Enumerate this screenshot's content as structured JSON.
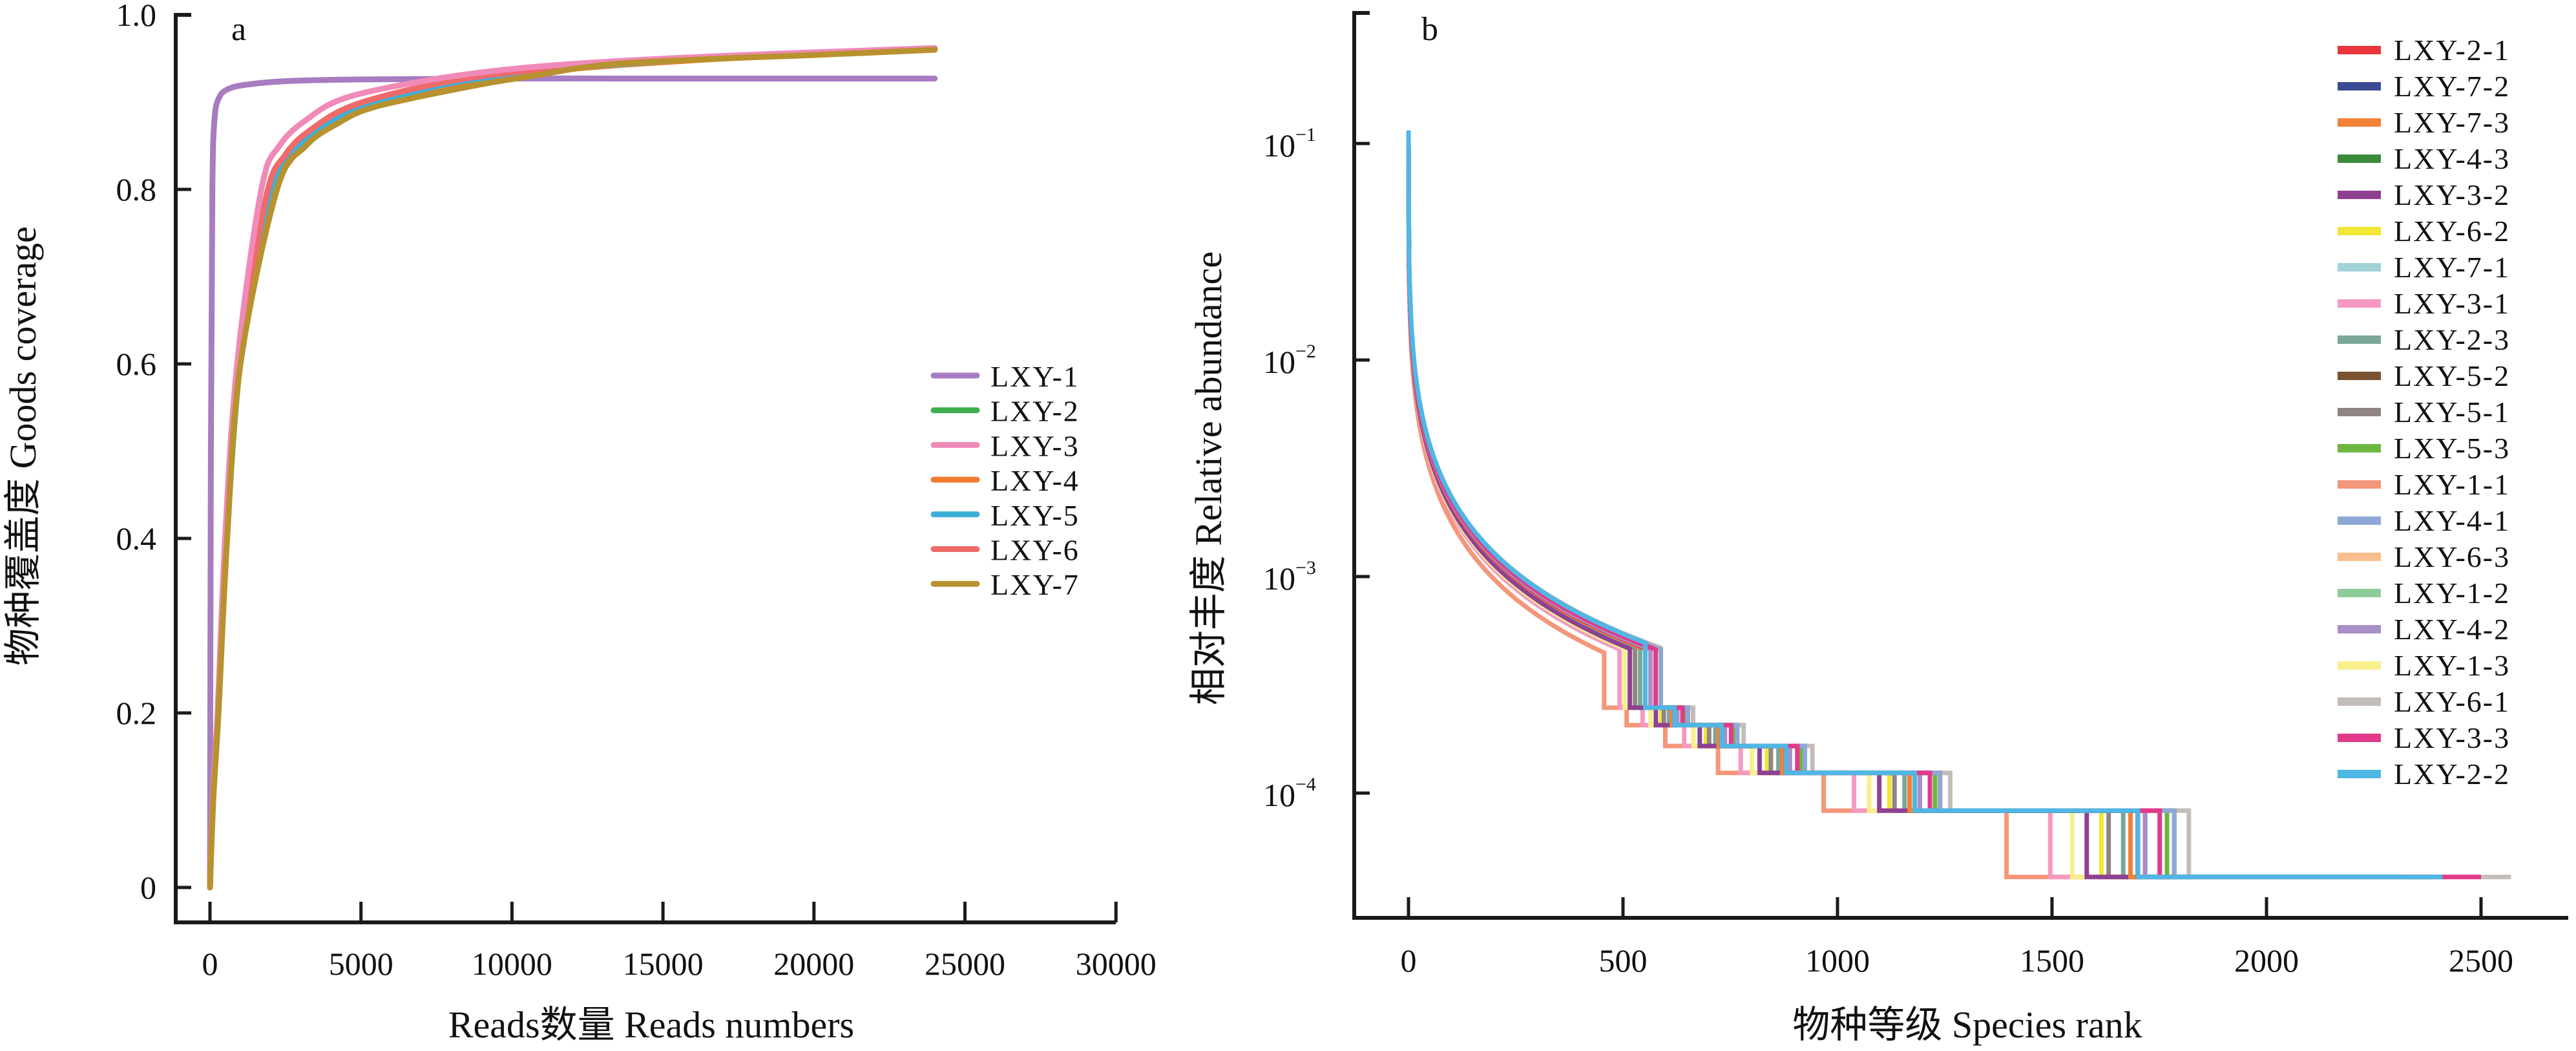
{
  "chart_data": [
    {
      "panel_label": "a",
      "type": "line",
      "title": "",
      "xlabel": "Reads数量 Reads numbers",
      "ylabel": "物种覆盖度 Goods coverage",
      "xlim": [
        0,
        30000
      ],
      "ylim": [
        0,
        1.0
      ],
      "xticks": [
        0,
        5000,
        10000,
        15000,
        20000,
        25000,
        30000
      ],
      "xtick_labels": [
        "0",
        "5000",
        "10000",
        "15000",
        "20000",
        "25000",
        "30000"
      ],
      "yticks": [
        0,
        0.2,
        0.4,
        0.6,
        0.8,
        1.0
      ],
      "ytick_labels": [
        "0",
        "0.2",
        "0.4",
        "0.6",
        "0.8",
        "1.0"
      ],
      "grid": false,
      "legend_position": "center-right",
      "series": [
        {
          "name": "LXY-1",
          "color": "#a77cc0",
          "x": [
            0,
            30,
            80,
            150,
            300,
            600,
            1200,
            2500,
            5000,
            10000,
            15000,
            20000,
            24000
          ],
          "y": [
            0,
            0.5,
            0.8,
            0.88,
            0.905,
            0.915,
            0.92,
            0.924,
            0.926,
            0.927,
            0.927,
            0.927,
            0.927
          ]
        },
        {
          "name": "LXY-2",
          "color": "#3fae50",
          "x": [
            0,
            100,
            280,
            560,
            1000,
            1800,
            2500,
            3500,
            5000,
            7500,
            10000,
            13000,
            17000,
            20000,
            24000
          ],
          "y": [
            0,
            0.1,
            0.2,
            0.4,
            0.6,
            0.77,
            0.83,
            0.865,
            0.895,
            0.918,
            0.933,
            0.942,
            0.951,
            0.955,
            0.961
          ]
        },
        {
          "name": "LXY-3",
          "color": "#f08ab8",
          "x": [
            0,
            90,
            250,
            500,
            900,
            1700,
            2300,
            3200,
            4500,
            7200,
            10000,
            13000,
            17000,
            20000,
            24000
          ],
          "y": [
            0,
            0.1,
            0.2,
            0.4,
            0.6,
            0.8,
            0.85,
            0.88,
            0.905,
            0.925,
            0.938,
            0.946,
            0.953,
            0.957,
            0.962
          ]
        },
        {
          "name": "LXY-4",
          "color": "#f07d2f",
          "x": [
            0,
            100,
            270,
            550,
            980,
            1900,
            2700,
            3600,
            5000,
            7800,
            10000,
            13000,
            17000,
            20000,
            24000
          ],
          "y": [
            0,
            0.1,
            0.2,
            0.4,
            0.6,
            0.78,
            0.835,
            0.866,
            0.893,
            0.918,
            0.931,
            0.941,
            0.95,
            0.955,
            0.96
          ]
        },
        {
          "name": "LXY-5",
          "color": "#3eb0d8",
          "x": [
            0,
            100,
            270,
            550,
            980,
            1850,
            2600,
            3500,
            5000,
            7600,
            10000,
            13000,
            17000,
            20000,
            24000
          ],
          "y": [
            0,
            0.1,
            0.2,
            0.4,
            0.6,
            0.78,
            0.835,
            0.867,
            0.894,
            0.919,
            0.932,
            0.942,
            0.951,
            0.955,
            0.961
          ]
        },
        {
          "name": "LXY-6",
          "color": "#f06a6a",
          "x": [
            0,
            95,
            265,
            540,
            960,
            1850,
            2500,
            3400,
            4800,
            7500,
            10000,
            13000,
            17000,
            20000,
            24000
          ],
          "y": [
            0,
            0.1,
            0.2,
            0.4,
            0.6,
            0.79,
            0.84,
            0.87,
            0.897,
            0.921,
            0.934,
            0.943,
            0.951,
            0.956,
            0.961
          ]
        },
        {
          "name": "LXY-7",
          "color": "#b8922e",
          "x": [
            0,
            110,
            280,
            570,
            1010,
            2220,
            3180,
            4200,
            5500,
            8770,
            10500,
            13160,
            17000,
            20000,
            24000
          ],
          "y": [
            0,
            0.1,
            0.2,
            0.4,
            0.6,
            0.8,
            0.85,
            0.875,
            0.895,
            0.919,
            0.929,
            0.943,
            0.95,
            0.954,
            0.96
          ]
        }
      ]
    },
    {
      "panel_label": "b",
      "type": "line",
      "title": "",
      "xlabel": "物种等级 Species rank",
      "ylabel": "相对丰度 Relative abundance",
      "xlim": [
        -100,
        2700
      ],
      "ylim": [
        2e-05,
        0.3
      ],
      "yscale": "log",
      "xticks": [
        0,
        500,
        1000,
        1500,
        2000,
        2500
      ],
      "xtick_labels": [
        "0",
        "500",
        "1000",
        "1500",
        "2000",
        "2500"
      ],
      "yticks": [
        0.1,
        0.01,
        0.001,
        0.0001
      ],
      "ytick_labels": [
        {
          "base": "10",
          "exp": "−1"
        },
        {
          "base": "10",
          "exp": "−2"
        },
        {
          "base": "10",
          "exp": "−3"
        },
        {
          "base": "10",
          "exp": "−4"
        }
      ],
      "grid": false,
      "legend_position": "right",
      "curve_notes": "Rank-abundance curves; all samples start near 0.1 relative abundance at rank 1 and descend in steps to a floor of about 4.1e-5.",
      "series": [
        {
          "name": "LXY-2-1",
          "color": "#e8363a",
          "max_rank": 2330,
          "top": 0.1,
          "shift": 1.0
        },
        {
          "name": "LXY-7-2",
          "color": "#3a4a94",
          "max_rank": 2340,
          "top": 0.1,
          "shift": 1.0
        },
        {
          "name": "LXY-7-3",
          "color": "#f38136",
          "max_rank": 2300,
          "top": 0.1,
          "shift": 0.99
        },
        {
          "name": "LXY-4-3",
          "color": "#3a8b3a",
          "max_rank": 2320,
          "top": 0.1,
          "shift": 1.01
        },
        {
          "name": "LXY-3-2",
          "color": "#8e4193",
          "max_rank": 2250,
          "top": 0.1,
          "shift": 0.93
        },
        {
          "name": "LXY-6-2",
          "color": "#f2e637",
          "max_rank": 2260,
          "top": 0.1,
          "shift": 0.95
        },
        {
          "name": "LXY-7-1",
          "color": "#9fd3d6",
          "max_rank": 2380,
          "top": 0.1,
          "shift": 1.03
        },
        {
          "name": "LXY-3-1",
          "color": "#f49ac0",
          "max_rank": 2200,
          "top": 0.1,
          "shift": 0.88
        },
        {
          "name": "LXY-2-3",
          "color": "#7aa79a",
          "max_rank": 2300,
          "top": 0.1,
          "shift": 0.98
        },
        {
          "name": "LXY-5-2",
          "color": "#7a5330",
          "max_rank": 2390,
          "top": 0.1,
          "shift": 1.05
        },
        {
          "name": "LXY-5-1",
          "color": "#8f8585",
          "max_rank": 2290,
          "top": 0.1,
          "shift": 0.96
        },
        {
          "name": "LXY-5-3",
          "color": "#6db63f",
          "max_rank": 2380,
          "top": 0.1,
          "shift": 1.04
        },
        {
          "name": "LXY-1-1",
          "color": "#f4967a",
          "max_rank": 2100,
          "top": 0.09,
          "shift": 0.82
        },
        {
          "name": "LXY-4-1",
          "color": "#8ea8d6",
          "max_rank": 2400,
          "top": 0.1,
          "shift": 1.05
        },
        {
          "name": "LXY-6-3",
          "color": "#f9be8d",
          "max_rank": 2320,
          "top": 0.1,
          "shift": 1.0
        },
        {
          "name": "LXY-1-2",
          "color": "#8dcc98",
          "max_rank": 2310,
          "top": 0.1,
          "shift": 0.99
        },
        {
          "name": "LXY-4-2",
          "color": "#a88fc8",
          "max_rank": 2350,
          "top": 0.1,
          "shift": 1.01
        },
        {
          "name": "LXY-1-3",
          "color": "#f8f08c",
          "max_rank": 2180,
          "top": 0.1,
          "shift": 0.91
        },
        {
          "name": "LXY-6-1",
          "color": "#c4bcb8",
          "max_rank": 2570,
          "top": 0.1,
          "shift": 1.07
        },
        {
          "name": "LXY-3-3",
          "color": "#e23a8a",
          "max_rank": 2500,
          "top": 0.1,
          "shift": 1.03
        },
        {
          "name": "LXY-2-2",
          "color": "#4fb7e3",
          "max_rank": 2410,
          "top": 0.115,
          "shift": 1.0
        }
      ],
      "floor_abundance": 4.1e-05,
      "steps": [
        4.1e-05,
        8.3e-05,
        0.000124,
        0.000165,
        0.000206,
        0.000248
      ]
    }
  ]
}
